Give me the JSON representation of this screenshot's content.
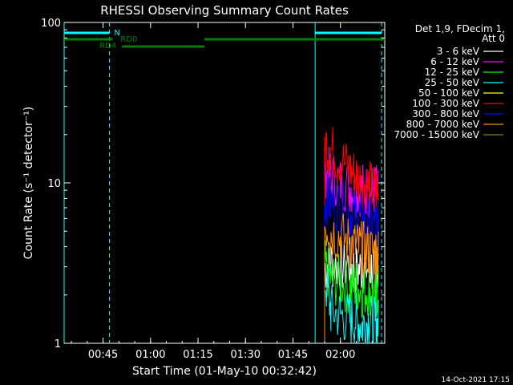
{
  "chart_data": {
    "type": "line",
    "title": "RHESSI Observing Summary Count Rates",
    "xlabel": "Start Time (01-May-10 00:32:42)",
    "ylabel": "Count Rate (s⁻¹ detector⁻¹)",
    "yscale": "log",
    "ylim": [
      1,
      100
    ],
    "xlim": [
      "00:32:42",
      "02:14:00"
    ],
    "x_ticks": [
      "00:45",
      "01:00",
      "01:15",
      "01:30",
      "01:45",
      "02:00"
    ],
    "y_ticks": [
      "1",
      "10",
      "100"
    ],
    "grid": false,
    "legend_position": "top-right",
    "legend_header": [
      "Det 1,9, FDecim 1,",
      "Att 0"
    ],
    "series": [
      {
        "name": "3 - 6 keV",
        "color": "#ffffff",
        "x": [
          "01:53",
          "01:55",
          "01:57",
          "02:00",
          "02:03",
          "02:05",
          "02:07",
          "02:09",
          "02:11",
          "02:12"
        ],
        "values": [
          null,
          3.0,
          3.2,
          3.0,
          3.1,
          2.8,
          3.0,
          2.9,
          3.0,
          3.0
        ]
      },
      {
        "name": "6 - 12 keV",
        "color": "#ff00ff",
        "x": [
          "01:53",
          "01:55",
          "01:57",
          "02:00",
          "02:03",
          "02:05",
          "02:07",
          "02:09",
          "02:11",
          "02:12"
        ],
        "values": [
          null,
          12,
          11,
          10,
          9.5,
          9,
          9.2,
          8.8,
          9,
          8.6
        ]
      },
      {
        "name": "12 - 25 keV",
        "color": "#00ff00",
        "x": [
          "01:53",
          "01:55",
          "01:57",
          "02:00",
          "02:03",
          "02:05",
          "02:07",
          "02:09",
          "02:11",
          "02:12"
        ],
        "values": [
          null,
          3.0,
          2.5,
          2.4,
          2.2,
          2.3,
          2.1,
          2.2,
          2.0,
          2.1
        ]
      },
      {
        "name": "25 - 50 keV",
        "color": "#00ffff",
        "x": [
          "01:53",
          "01:55",
          "01:57",
          "02:00",
          "02:03",
          "02:05",
          "02:07",
          "02:09",
          "02:11",
          "02:12"
        ],
        "values": [
          null,
          2.5,
          1.6,
          1.5,
          1.4,
          1.4,
          1.3,
          1.4,
          1.3,
          1.3
        ]
      },
      {
        "name": "50 - 100 keV",
        "color": "#ffff00",
        "x": [],
        "values": []
      },
      {
        "name": "100 - 300 keV",
        "color": "#ff0000",
        "x": [
          "01:53",
          "01:55",
          "01:57",
          "02:00",
          "02:03",
          "02:05",
          "02:07",
          "02:09",
          "02:11",
          "02:12"
        ],
        "values": [
          null,
          18,
          16,
          14,
          12,
          11,
          10,
          9.5,
          9,
          9
        ]
      },
      {
        "name": "300 - 800 keV",
        "color": "#0000ff",
        "x": [
          "01:53",
          "01:55",
          "01:57",
          "02:00",
          "02:03",
          "02:05",
          "02:07",
          "02:09",
          "02:11",
          "02:12"
        ],
        "values": [
          null,
          8,
          7.5,
          7,
          6.5,
          6.2,
          6,
          5.6,
          5.4,
          5.2
        ]
      },
      {
        "name": "800 - 7000 keV",
        "color": "#ff8c00",
        "x": [
          "01:53",
          "01:55",
          "01:57",
          "02:00",
          "02:03",
          "02:05",
          "02:07",
          "02:09",
          "02:11",
          "02:12"
        ],
        "values": [
          null,
          5.5,
          5,
          4.6,
          4.2,
          4,
          3.9,
          3.8,
          3.7,
          3.6
        ]
      },
      {
        "name": "7000 - 15000 keV",
        "color": "#6b8e23",
        "x": [],
        "values": []
      }
    ],
    "annotations": {
      "bars": [
        {
          "label": "N",
          "color": "#00ffff",
          "segments": [
            [
              "00:32:42",
              "00:47"
            ],
            [
              "01:52",
              "02:13"
            ]
          ]
        },
        {
          "label": "RD0",
          "color": "#008000",
          "segments": [
            [
              "00:32:42",
              "00:48"
            ],
            [
              "01:17",
              "02:14"
            ]
          ]
        },
        {
          "label": "RD4",
          "color": "#008000",
          "segments": [
            [
              "00:51",
              "01:17"
            ]
          ]
        }
      ],
      "dashed_vlines": [
        "00:47",
        "02:13"
      ],
      "solid_vlines": [
        "00:32:42",
        "01:52"
      ]
    }
  },
  "footer": {
    "timestamp": "14-Oct-2021 17:15"
  }
}
